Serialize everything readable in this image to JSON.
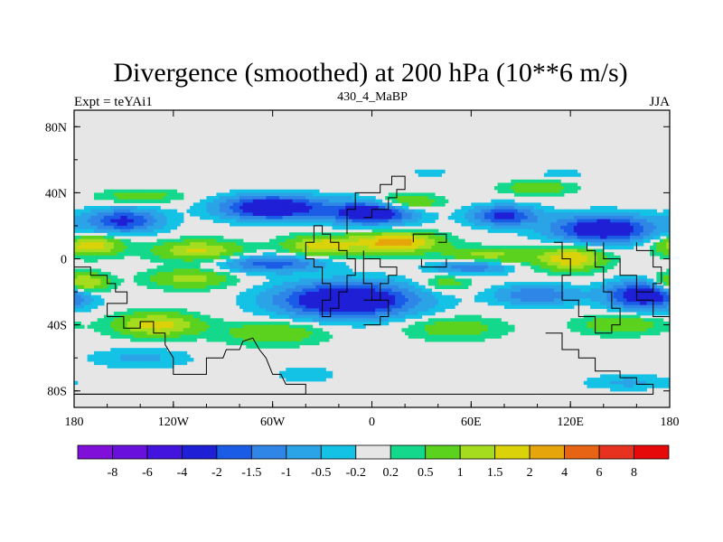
{
  "chart_data": {
    "type": "heatmap",
    "title": "Divergence (smoothed) at 200 hPa (10**6 m/s)",
    "subtitle_left": "Expt = teYAi1",
    "subtitle_center": "430_4_MaBP",
    "subtitle_right": "JJA",
    "x_ticks": [
      {
        "value": -180,
        "label": "180"
      },
      {
        "value": -120,
        "label": "120W"
      },
      {
        "value": -60,
        "label": "60W"
      },
      {
        "value": 0,
        "label": "0"
      },
      {
        "value": 60,
        "label": "60E"
      },
      {
        "value": 120,
        "label": "120E"
      },
      {
        "value": 180,
        "label": "180"
      }
    ],
    "y_ticks": [
      {
        "value": 80,
        "label": "80N"
      },
      {
        "value": 40,
        "label": "40N"
      },
      {
        "value": 0,
        "label": "0"
      },
      {
        "value": -40,
        "label": "40S"
      },
      {
        "value": -80,
        "label": "80S"
      }
    ],
    "xlim": [
      -180,
      180
    ],
    "ylim": [
      -90,
      90
    ],
    "colorbar": {
      "colors": [
        "#7f0fd9",
        "#6a10dd",
        "#4414df",
        "#1f1fd6",
        "#1a5ce6",
        "#2f86e6",
        "#2aa4e6",
        "#14c2e6",
        "#e6e6e6",
        "#14d98c",
        "#5ad21e",
        "#a6dc1e",
        "#dcd20a",
        "#e6a50a",
        "#e66414",
        "#e6321e",
        "#e60a0a"
      ],
      "labels": [
        "-8",
        "-6",
        "-4",
        "-2",
        "-1.5",
        "-1",
        "-0.5",
        "-0.2",
        "0.2",
        "0.5",
        "1",
        "1.5",
        "2",
        "4",
        "6",
        "8"
      ]
    },
    "features": [
      {
        "lat": 23,
        "lon": -150,
        "amp": -2.2,
        "slat": 7,
        "slon": 22
      },
      {
        "lat": 31,
        "lon": -60,
        "amp": -3.2,
        "slat": 7,
        "slon": 30
      },
      {
        "lat": 28,
        "lon": 0,
        "amp": -3.0,
        "slat": 7,
        "slon": 25
      },
      {
        "lat": 18,
        "lon": 140,
        "amp": -3.0,
        "slat": 8,
        "slon": 30
      },
      {
        "lat": 26,
        "lon": 80,
        "amp": -2.2,
        "slat": 6,
        "slon": 20
      },
      {
        "lat": 34,
        "lon": 20,
        "amp": 1.4,
        "slat": 5,
        "slon": 20
      },
      {
        "lat": 8,
        "lon": -170,
        "amp": 1.9,
        "slat": 6,
        "slon": 18
      },
      {
        "lat": 5,
        "lon": -105,
        "amp": 1.6,
        "slat": 6,
        "slon": 26
      },
      {
        "lat": 8,
        "lon": -30,
        "amp": 1.8,
        "slat": 6,
        "slon": 22
      },
      {
        "lat": 10,
        "lon": 15,
        "amp": 2.4,
        "slat": 6,
        "slon": 25
      },
      {
        "lat": 0,
        "lon": 120,
        "amp": 2.0,
        "slat": 7,
        "slon": 20
      },
      {
        "lat": 2,
        "lon": 70,
        "amp": 1.2,
        "slat": 5,
        "slon": 25
      },
      {
        "lat": -3,
        "lon": -60,
        "amp": -1.8,
        "slat": 5,
        "slon": 30
      },
      {
        "lat": -5,
        "lon": 60,
        "amp": -1.5,
        "slat": 4,
        "slon": 22
      },
      {
        "lat": -15,
        "lon": -175,
        "amp": 2.0,
        "slat": 6,
        "slon": 15
      },
      {
        "lat": -12,
        "lon": -110,
        "amp": 1.2,
        "slat": 6,
        "slon": 25
      },
      {
        "lat": -25,
        "lon": -15,
        "amp": -3.5,
        "slat": 10,
        "slon": 40
      },
      {
        "lat": -22,
        "lon": 100,
        "amp": -1.5,
        "slat": 6,
        "slon": 25
      },
      {
        "lat": -22,
        "lon": 165,
        "amp": -3.0,
        "slat": 8,
        "slon": 22
      },
      {
        "lat": -15,
        "lon": 45,
        "amp": 0.8,
        "slat": 5,
        "slon": 15
      },
      {
        "lat": -40,
        "lon": -130,
        "amp": 1.8,
        "slat": 7,
        "slon": 25
      },
      {
        "lat": -45,
        "lon": -60,
        "amp": 1.0,
        "slat": 7,
        "slon": 30
      },
      {
        "lat": -42,
        "lon": 50,
        "amp": 0.8,
        "slat": 7,
        "slon": 30
      },
      {
        "lat": -40,
        "lon": 150,
        "amp": 1.0,
        "slat": 6,
        "slon": 25
      },
      {
        "lat": -60,
        "lon": -140,
        "amp": -0.6,
        "slat": 6,
        "slon": 30
      },
      {
        "lat": -75,
        "lon": 155,
        "amp": -0.6,
        "slat": 5,
        "slon": 25
      },
      {
        "lat": -70,
        "lon": -40,
        "amp": -0.4,
        "slat": 5,
        "slon": 20
      },
      {
        "lat": 54,
        "lon": 35,
        "amp": -0.5,
        "slat": 4,
        "slon": 12
      },
      {
        "lat": 52,
        "lon": 115,
        "amp": -0.4,
        "slat": 3,
        "slon": 15
      },
      {
        "lat": 38,
        "lon": -140,
        "amp": 0.8,
        "slat": 4,
        "slon": 25
      },
      {
        "lat": 43,
        "lon": 100,
        "amp": 1.0,
        "slat": 4,
        "slon": 20
      }
    ],
    "coastlines": [
      [
        [
          -180,
          -5
        ],
        [
          -170,
          -5
        ],
        [
          -170,
          -10
        ],
        [
          -160,
          -10
        ],
        [
          -160,
          -15
        ],
        [
          -155,
          -15
        ],
        [
          -155,
          -20
        ],
        [
          -148,
          -20
        ],
        [
          -148,
          -27
        ],
        [
          -160,
          -27
        ],
        [
          -160,
          -35
        ],
        [
          -150,
          -35
        ],
        [
          -150,
          -42
        ],
        [
          -140,
          -42
        ],
        [
          -140,
          -38
        ],
        [
          -132,
          -38
        ],
        [
          -132,
          -45
        ],
        [
          -125,
          -45
        ],
        [
          -125,
          -52
        ]
      ],
      [
        [
          -125,
          -52
        ],
        [
          -120,
          -60
        ],
        [
          -120,
          -70
        ],
        [
          -110,
          -70
        ],
        [
          -100,
          -70
        ],
        [
          -100,
          -60
        ],
        [
          -90,
          -60
        ],
        [
          -88,
          -55
        ],
        [
          -80,
          -55
        ],
        [
          -78,
          -50
        ],
        [
          -72,
          -48
        ],
        [
          -68,
          -55
        ],
        [
          -64,
          -60
        ]
      ],
      [
        [
          -64,
          -60
        ],
        [
          -60,
          -70
        ],
        [
          -55,
          -70
        ],
        [
          -52,
          -76
        ],
        [
          -40,
          -76
        ],
        [
          -40,
          -82
        ],
        [
          -100,
          -82
        ],
        [
          -180,
          -82
        ]
      ],
      [
        [
          -140,
          -38
        ],
        [
          -140,
          -42
        ]
      ],
      [
        [
          -40,
          10
        ],
        [
          -40,
          0
        ],
        [
          -35,
          0
        ],
        [
          -35,
          -5
        ],
        [
          -30,
          -5
        ],
        [
          -30,
          -15
        ],
        [
          -25,
          -15
        ],
        [
          -25,
          -25
        ],
        [
          -30,
          -25
        ],
        [
          -30,
          -35
        ],
        [
          -25,
          -35
        ],
        [
          -25,
          -30
        ],
        [
          -20,
          -30
        ],
        [
          -20,
          -20
        ],
        [
          -15,
          -20
        ],
        [
          -15,
          -10
        ],
        [
          -10,
          -10
        ],
        [
          -10,
          0
        ],
        [
          -15,
          0
        ],
        [
          -15,
          5
        ],
        [
          -20,
          5
        ],
        [
          -20,
          10
        ],
        [
          -25,
          10
        ],
        [
          -25,
          15
        ],
        [
          -30,
          15
        ],
        [
          -30,
          20
        ],
        [
          -35,
          20
        ],
        [
          -35,
          10
        ],
        [
          -40,
          10
        ]
      ],
      [
        [
          -5,
          5
        ],
        [
          -5,
          -15
        ],
        [
          0,
          -15
        ],
        [
          0,
          -25
        ],
        [
          5,
          -25
        ],
        [
          5,
          -15
        ],
        [
          10,
          -15
        ],
        [
          10,
          -10
        ],
        [
          15,
          -10
        ],
        [
          15,
          -5
        ],
        [
          5,
          -5
        ],
        [
          5,
          0
        ],
        [
          -5,
          0
        ],
        [
          -5,
          5
        ]
      ],
      [
        [
          -5,
          -25
        ],
        [
          10,
          -25
        ],
        [
          10,
          -35
        ],
        [
          5,
          -35
        ],
        [
          5,
          -40
        ],
        [
          -5,
          -40
        ]
      ],
      [
        [
          -15,
          15
        ],
        [
          -15,
          30
        ],
        [
          -10,
          30
        ],
        [
          -10,
          40
        ],
        [
          5,
          40
        ],
        [
          5,
          45
        ],
        [
          12,
          45
        ],
        [
          12,
          50
        ],
        [
          20,
          50
        ],
        [
          20,
          42
        ],
        [
          15,
          42
        ],
        [
          15,
          37
        ],
        [
          10,
          37
        ],
        [
          10,
          30
        ],
        [
          0,
          30
        ],
        [
          0,
          25
        ],
        [
          -5,
          25
        ]
      ],
      [
        [
          25,
          10
        ],
        [
          25,
          15
        ],
        [
          45,
          15
        ],
        [
          45,
          10
        ],
        [
          40,
          10
        ]
      ],
      [
        [
          30,
          0
        ],
        [
          30,
          -5
        ],
        [
          45,
          -5
        ],
        [
          45,
          0
        ]
      ],
      [
        [
          110,
          10
        ],
        [
          115,
          10
        ],
        [
          115,
          0
        ],
        [
          120,
          0
        ],
        [
          120,
          -10
        ],
        [
          115,
          -10
        ],
        [
          115,
          -25
        ],
        [
          125,
          -25
        ],
        [
          125,
          -35
        ],
        [
          135,
          -35
        ],
        [
          135,
          -45
        ],
        [
          145,
          -45
        ],
        [
          145,
          -40
        ],
        [
          150,
          -40
        ],
        [
          150,
          -30
        ],
        [
          145,
          -30
        ],
        [
          145,
          -20
        ],
        [
          140,
          -20
        ],
        [
          140,
          -5
        ],
        [
          135,
          -5
        ],
        [
          135,
          5
        ],
        [
          130,
          5
        ],
        [
          130,
          10
        ]
      ],
      [
        [
          140,
          10
        ],
        [
          140,
          0
        ],
        [
          150,
          0
        ],
        [
          150,
          -10
        ],
        [
          160,
          -10
        ],
        [
          160,
          -20
        ],
        [
          170,
          -20
        ],
        [
          170,
          -15
        ],
        [
          175,
          -15
        ],
        [
          175,
          -5
        ],
        [
          170,
          -5
        ],
        [
          170,
          5
        ],
        [
          160,
          5
        ],
        [
          160,
          10
        ]
      ],
      [
        [
          160,
          -15
        ],
        [
          160,
          -25
        ],
        [
          170,
          -25
        ],
        [
          170,
          -35
        ],
        [
          180,
          -35
        ]
      ],
      [
        [
          105,
          -45
        ],
        [
          115,
          -45
        ],
        [
          115,
          -55
        ],
        [
          125,
          -55
        ],
        [
          125,
          -60
        ],
        [
          135,
          -60
        ],
        [
          135,
          -68
        ],
        [
          150,
          -68
        ],
        [
          150,
          -72
        ],
        [
          160,
          -72
        ],
        [
          160,
          -76
        ],
        [
          170,
          -76
        ],
        [
          170,
          -82
        ],
        [
          100,
          -82
        ]
      ],
      [
        [
          -180,
          -82
        ],
        [
          100,
          -82
        ]
      ]
    ]
  }
}
